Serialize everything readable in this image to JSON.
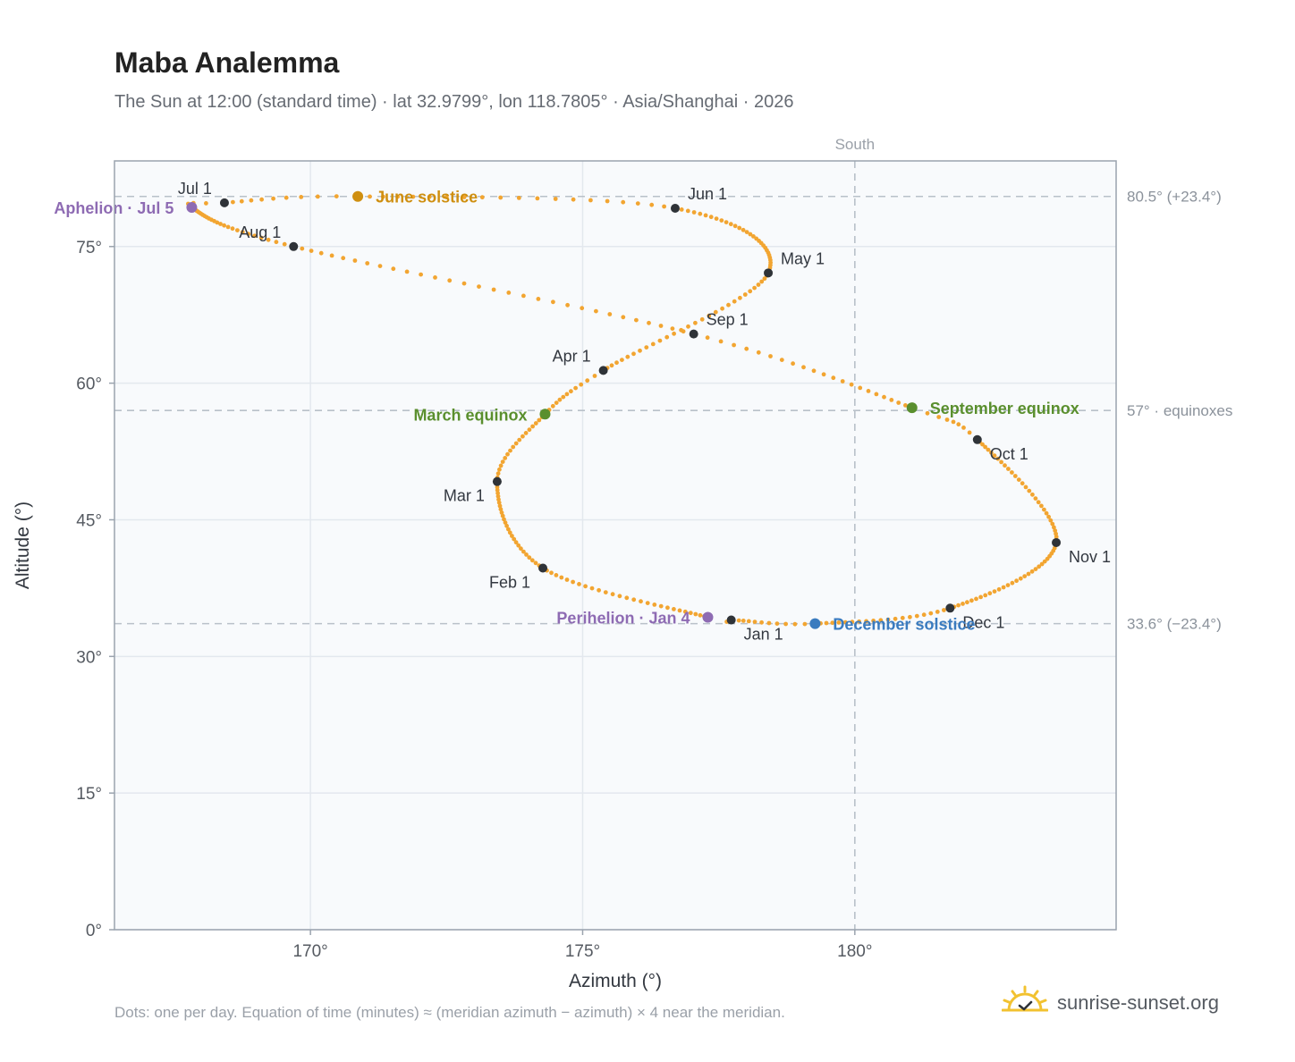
{
  "title": "Maba Analemma",
  "subtitle": "The Sun at 12:00 (standard time) · lat 32.9799°, lon 118.7805° · Asia/Shanghai · 2026",
  "footnote": "Dots: one per day. Equation of time (minutes) ≈ (meridian azimuth − azimuth) × 4 near the meridian.",
  "brand": {
    "name": "sunrise-sunset.org",
    "icon": "sun-logo-icon"
  },
  "colors": {
    "path": "#f2a531",
    "month_marker": "#2f3338",
    "equinox": "#5a8f2e",
    "june_solstice": "#cf8f10",
    "december_solstice": "#3a7bbf",
    "apsis": "#8e6bb3",
    "ref_line": "#b9c1c9",
    "grid": "#e3e8ee",
    "axis": "#9aa3ae",
    "plot_bg": "#f8fafc"
  },
  "chart_data": {
    "type": "scatter",
    "xlabel": "Azimuth (°)",
    "ylabel": "Altitude (°)",
    "xlim": [
      166.4,
      184.8
    ],
    "ylim": [
      0,
      84.4
    ],
    "xticks": [
      {
        "value": 170,
        "label": "170°"
      },
      {
        "value": 175,
        "label": "175°"
      },
      {
        "value": 180,
        "label": "180°"
      }
    ],
    "yticks": [
      {
        "value": 0,
        "label": "0°"
      },
      {
        "value": 15,
        "label": "15°"
      },
      {
        "value": 30,
        "label": "30°"
      },
      {
        "value": 45,
        "label": "45°"
      },
      {
        "value": 60,
        "label": "60°"
      },
      {
        "value": 75,
        "label": "75°"
      }
    ],
    "grid": true,
    "meridian": {
      "azimuth": 180,
      "label": "South"
    },
    "reference_lines": [
      {
        "altitude": 80.5,
        "label": "80.5° (+23.4°)"
      },
      {
        "altitude": 57.0,
        "label": "57° · equinoxes"
      },
      {
        "altitude": 33.6,
        "label": "33.6° (−23.4°)"
      }
    ],
    "daily_path_anchors": [
      {
        "date": "Jan 1",
        "az": 177.73,
        "alt": 34.0
      },
      {
        "date": "Jan 4",
        "az": 177.3,
        "alt": 34.3
      },
      {
        "date": "Feb 1",
        "az": 174.27,
        "alt": 39.7
      },
      {
        "date": "Mar 1",
        "az": 173.43,
        "alt": 49.2
      },
      {
        "date": "Mar 20",
        "az": 174.31,
        "alt": 56.6
      },
      {
        "date": "Apr 1",
        "az": 175.38,
        "alt": 61.4
      },
      {
        "date": "May 1",
        "az": 178.41,
        "alt": 72.1
      },
      {
        "date": "Jun 1",
        "az": 176.7,
        "alt": 79.2
      },
      {
        "date": "Jun 21",
        "az": 170.87,
        "alt": 80.5
      },
      {
        "date": "Jul 1",
        "az": 168.42,
        "alt": 79.8
      },
      {
        "date": "Jul 5",
        "az": 167.82,
        "alt": 79.3
      },
      {
        "date": "Aug 1",
        "az": 169.69,
        "alt": 75.0
      },
      {
        "date": "Sep 1",
        "az": 177.04,
        "alt": 65.4
      },
      {
        "date": "Sep 23",
        "az": 181.05,
        "alt": 57.3
      },
      {
        "date": "Oct 1",
        "az": 182.25,
        "alt": 53.8
      },
      {
        "date": "Nov 1",
        "az": 183.7,
        "alt": 42.5
      },
      {
        "date": "Dec 1",
        "az": 181.75,
        "alt": 35.3
      },
      {
        "date": "Dec 21",
        "az": 179.27,
        "alt": 33.6
      },
      {
        "date": "Dec 31",
        "az": 177.87,
        "alt": 33.95
      }
    ],
    "month_markers": [
      {
        "label": "Jan 1",
        "az": 177.73,
        "alt": 34.0,
        "anchor": "below-right"
      },
      {
        "label": "Feb 1",
        "az": 174.27,
        "alt": 39.7,
        "anchor": "below-left"
      },
      {
        "label": "Mar 1",
        "az": 173.43,
        "alt": 49.2,
        "anchor": "below-left"
      },
      {
        "label": "Apr 1",
        "az": 175.38,
        "alt": 61.4,
        "anchor": "above-left"
      },
      {
        "label": "May 1",
        "az": 178.41,
        "alt": 72.1,
        "anchor": "above-right"
      },
      {
        "label": "Jun 1",
        "az": 176.7,
        "alt": 79.2,
        "anchor": "above-right"
      },
      {
        "label": "Jul 1",
        "az": 168.42,
        "alt": 79.8,
        "anchor": "above-left"
      },
      {
        "label": "Aug 1",
        "az": 169.69,
        "alt": 75.0,
        "anchor": "above-left"
      },
      {
        "label": "Sep 1",
        "az": 177.04,
        "alt": 65.4,
        "anchor": "above-right"
      },
      {
        "label": "Oct 1",
        "az": 182.25,
        "alt": 53.8,
        "anchor": "below-right"
      },
      {
        "label": "Nov 1",
        "az": 183.7,
        "alt": 42.5,
        "anchor": "below-right"
      },
      {
        "label": "Dec 1",
        "az": 181.75,
        "alt": 35.3,
        "anchor": "below-right"
      }
    ],
    "events": [
      {
        "label": "June solstice",
        "az": 170.87,
        "alt": 80.5,
        "color_key": "june_solstice",
        "side": "right"
      },
      {
        "label": "March equinox",
        "az": 174.31,
        "alt": 56.6,
        "color_key": "equinox",
        "side": "left"
      },
      {
        "label": "September equinox",
        "az": 181.05,
        "alt": 57.3,
        "color_key": "equinox",
        "side": "right"
      },
      {
        "label": "December solstice",
        "az": 179.27,
        "alt": 33.6,
        "color_key": "december_solstice",
        "side": "right"
      },
      {
        "label": "Perihelion · Jan 4",
        "az": 177.3,
        "alt": 34.3,
        "color_key": "apsis",
        "side": "left"
      },
      {
        "label": "Aphelion · Jul 5",
        "az": 167.82,
        "alt": 79.3,
        "color_key": "apsis",
        "side": "left"
      }
    ]
  }
}
